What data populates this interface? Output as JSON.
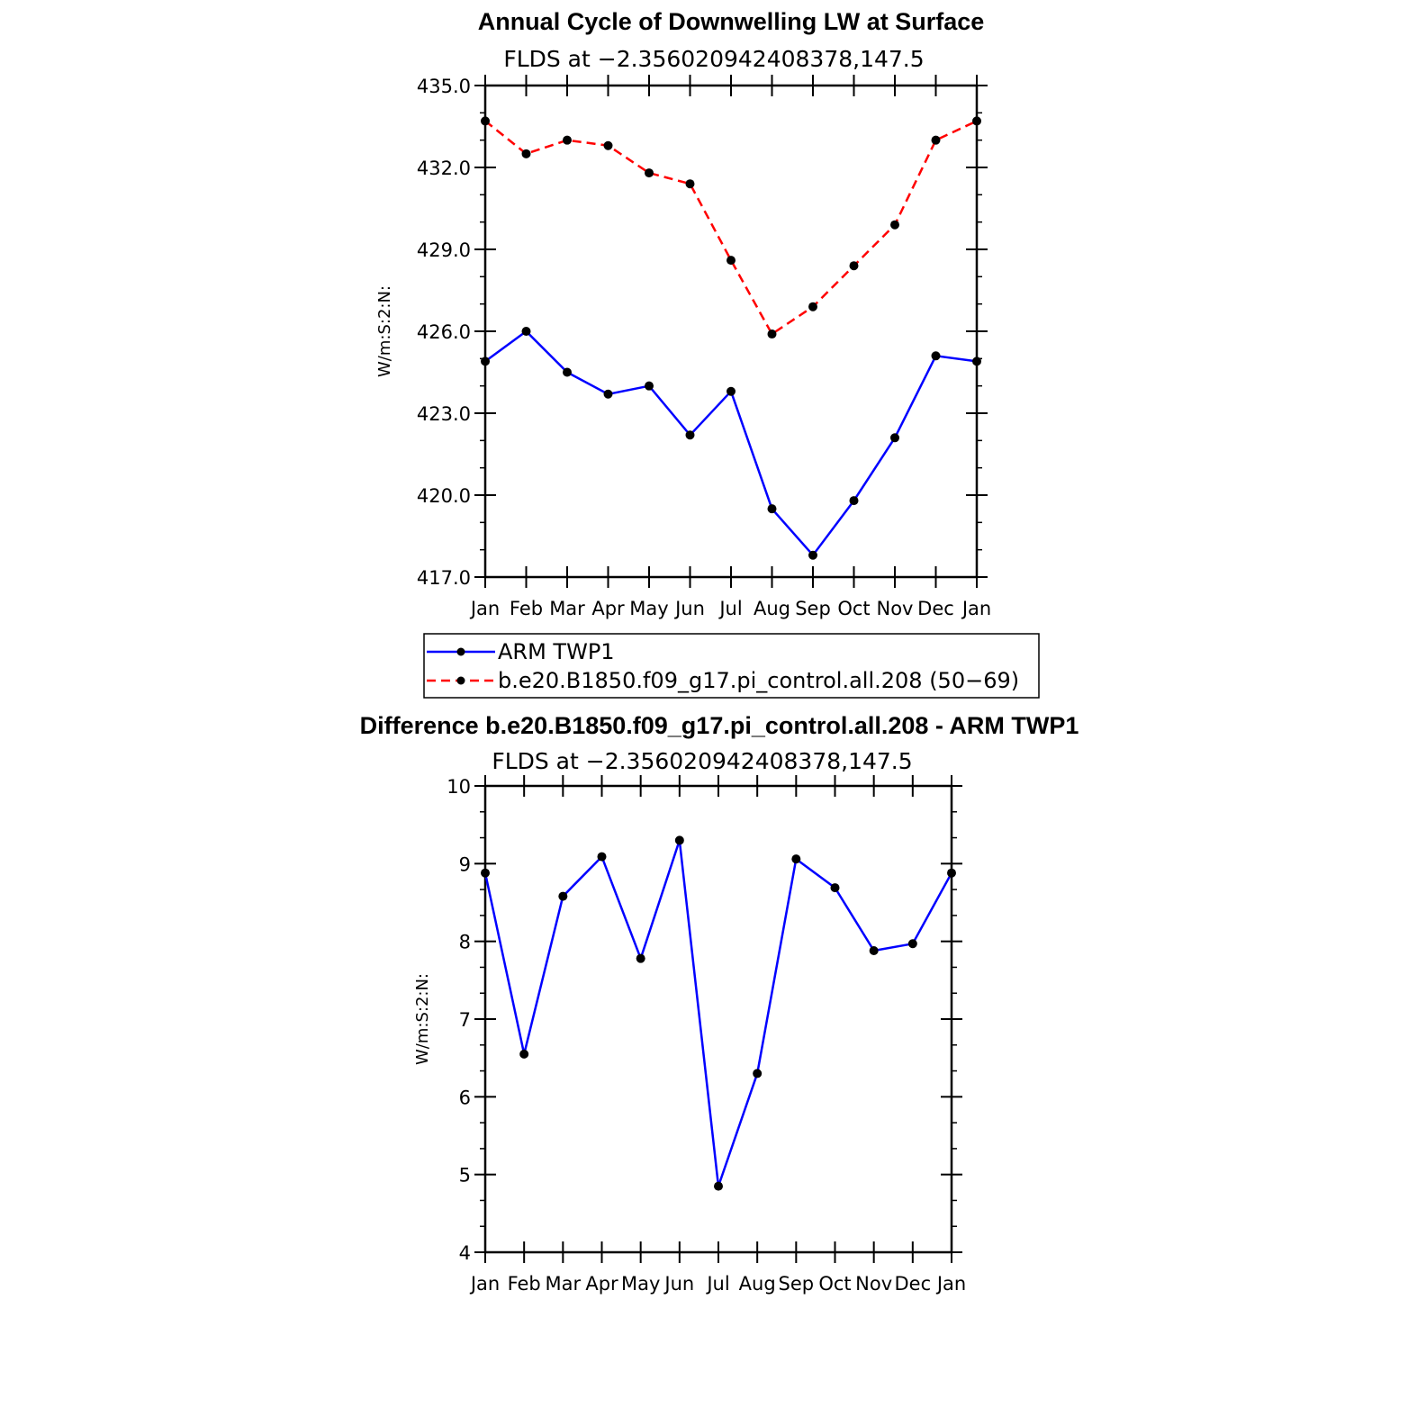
{
  "chart_data": [
    {
      "type": "line",
      "title": "Annual Cycle of Downwelling LW at Surface",
      "subtitle": "FLDS at −2.356020942408378,147.5",
      "ylabel": "W/m:S:2:N:",
      "ylim": [
        417.0,
        435.0
      ],
      "yticks": [
        "417.0",
        "420.0",
        "423.0",
        "426.0",
        "429.0",
        "432.0",
        "435.0"
      ],
      "categories": [
        "Jan",
        "Feb",
        "Mar",
        "Apr",
        "May",
        "Jun",
        "Jul",
        "Aug",
        "Sep",
        "Oct",
        "Nov",
        "Dec",
        "Jan"
      ],
      "series": [
        {
          "name": "ARM TWP1",
          "color": "#0000ff",
          "style": "solid",
          "values": [
            424.9,
            426.0,
            424.5,
            423.7,
            424.0,
            422.2,
            423.8,
            419.5,
            417.8,
            419.8,
            422.1,
            425.1,
            424.9
          ]
        },
        {
          "name": "b.e20.B1850.f09_g17.pi_control.all.208 (50−69)",
          "color": "#ff0000",
          "style": "dashed",
          "values": [
            433.7,
            432.5,
            433.0,
            432.8,
            431.8,
            431.4,
            428.6,
            425.9,
            426.9,
            428.4,
            429.9,
            433.0,
            433.7
          ]
        }
      ],
      "legend": "bottom"
    },
    {
      "type": "line",
      "title": "Difference b.e20.B1850.f09_g17.pi_control.all.208 - ARM TWP1",
      "subtitle": "FLDS at −2.356020942408378,147.5",
      "ylabel": "W/m:S:2:N:",
      "ylim": [
        4,
        10
      ],
      "yticks": [
        "4",
        "5",
        "6",
        "7",
        "8",
        "9",
        "10"
      ],
      "categories": [
        "Jan",
        "Feb",
        "Mar",
        "Apr",
        "May",
        "Jun",
        "Jul",
        "Aug",
        "Sep",
        "Oct",
        "Nov",
        "Dec",
        "Jan"
      ],
      "series": [
        {
          "color": "#0000ff",
          "style": "solid",
          "values": [
            8.88,
            6.55,
            8.58,
            9.09,
            7.78,
            9.3,
            4.85,
            6.3,
            9.06,
            8.69,
            7.88,
            7.97,
            8.88
          ]
        }
      ]
    }
  ]
}
